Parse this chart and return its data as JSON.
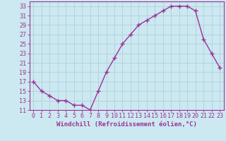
{
  "x": [
    0,
    1,
    2,
    3,
    4,
    5,
    6,
    7,
    8,
    9,
    10,
    11,
    12,
    13,
    14,
    15,
    16,
    17,
    18,
    19,
    20,
    21,
    22,
    23
  ],
  "y": [
    17,
    15,
    14,
    13,
    13,
    12,
    12,
    11,
    15,
    19,
    22,
    25,
    27,
    29,
    30,
    31,
    32,
    33,
    33,
    33,
    32,
    26,
    23,
    20
  ],
  "line_color": "#993399",
  "marker": "+",
  "marker_size": 4,
  "bg_color": "#cce8f0",
  "grid_color": "#aaccd8",
  "xlabel": "Windchill (Refroidissement éolien,°C)",
  "xlabel_fontsize": 6.5,
  "tick_fontsize": 6.0,
  "ylim": [
    11,
    34
  ],
  "yticks": [
    11,
    13,
    15,
    17,
    19,
    21,
    23,
    25,
    27,
    29,
    31,
    33
  ],
  "xlim": [
    -0.5,
    23.5
  ],
  "xticks": [
    0,
    1,
    2,
    3,
    4,
    5,
    6,
    7,
    8,
    9,
    10,
    11,
    12,
    13,
    14,
    15,
    16,
    17,
    18,
    19,
    20,
    21,
    22,
    23
  ],
  "spine_color": "#993399",
  "label_color": "#993399",
  "line_width": 1.0,
  "marker_edge_width": 1.0
}
